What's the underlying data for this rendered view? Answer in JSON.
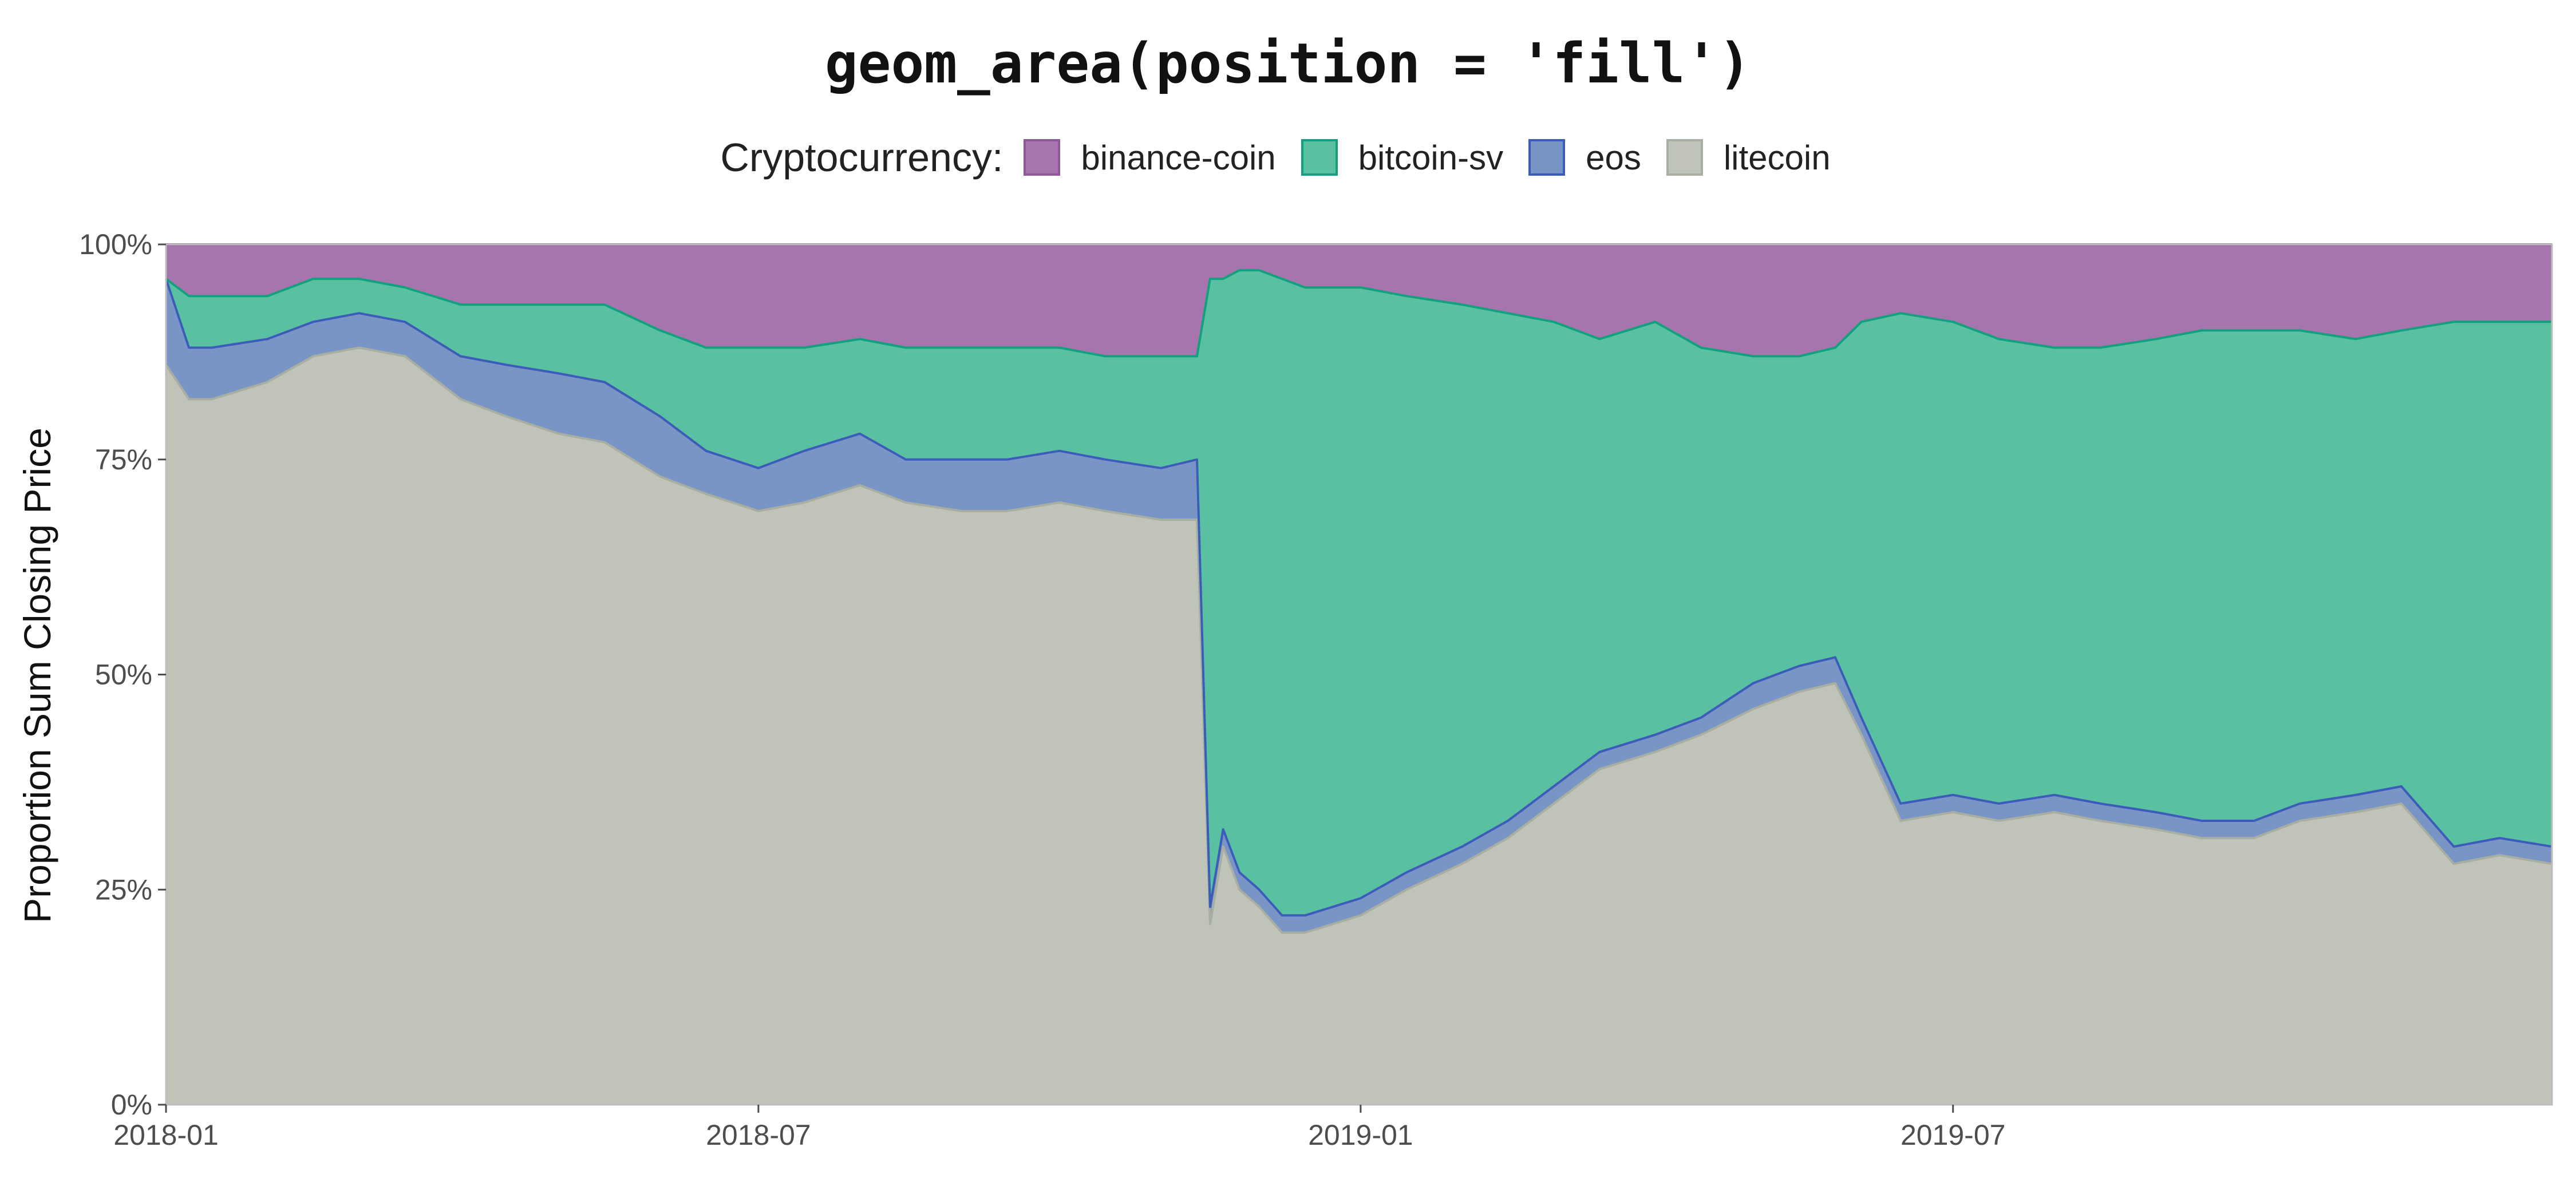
{
  "chart_data": {
    "type": "area",
    "title": "geom_area(position = 'fill')",
    "xlabel": "",
    "ylabel": "Proportion Sum Closing Price",
    "legend_title": "Cryptocurrency:",
    "legend_position": "top",
    "stacking": "fill",
    "x_range": [
      "2018-01-01",
      "2019-12-31"
    ],
    "ylim": [
      0,
      1
    ],
    "x_ticks": [
      {
        "date": "2018-01-01",
        "label": "2018-01"
      },
      {
        "date": "2018-07-01",
        "label": "2018-07"
      },
      {
        "date": "2019-01-01",
        "label": "2019-01"
      },
      {
        "date": "2019-07-01",
        "label": "2019-07"
      }
    ],
    "y_ticks": [
      {
        "value": 0,
        "label": "0%"
      },
      {
        "value": 0.25,
        "label": "25%"
      },
      {
        "value": 0.5,
        "label": "50%"
      },
      {
        "value": 0.75,
        "label": "75%"
      },
      {
        "value": 1,
        "label": "100%"
      }
    ],
    "x": [
      "2018-01-01",
      "2018-01-08",
      "2018-01-15",
      "2018-02-01",
      "2018-02-15",
      "2018-03-01",
      "2018-03-15",
      "2018-04-01",
      "2018-04-15",
      "2018-05-01",
      "2018-05-15",
      "2018-06-01",
      "2018-06-15",
      "2018-07-01",
      "2018-07-15",
      "2018-08-01",
      "2018-08-15",
      "2018-09-01",
      "2018-09-15",
      "2018-10-01",
      "2018-10-15",
      "2018-11-01",
      "2018-11-12",
      "2018-11-16",
      "2018-11-20",
      "2018-11-25",
      "2018-12-01",
      "2018-12-08",
      "2018-12-15",
      "2019-01-01",
      "2019-01-15",
      "2019-02-01",
      "2019-02-15",
      "2019-03-01",
      "2019-03-15",
      "2019-04-01",
      "2019-04-15",
      "2019-05-01",
      "2019-05-15",
      "2019-05-26",
      "2019-06-03",
      "2019-06-15",
      "2019-07-01",
      "2019-07-15",
      "2019-08-01",
      "2019-08-15",
      "2019-09-01",
      "2019-09-15",
      "2019-10-01",
      "2019-10-15",
      "2019-11-01",
      "2019-11-15",
      "2019-12-01",
      "2019-12-15",
      "2019-12-31"
    ],
    "series": [
      {
        "name": "litecoin",
        "color": "#C0C3B8",
        "line": "#A9AEA3",
        "values": [
          0.86,
          0.82,
          0.82,
          0.84,
          0.87,
          0.88,
          0.87,
          0.82,
          0.8,
          0.78,
          0.77,
          0.73,
          0.71,
          0.69,
          0.7,
          0.72,
          0.7,
          0.69,
          0.69,
          0.7,
          0.69,
          0.68,
          0.68,
          0.21,
          0.3,
          0.25,
          0.23,
          0.2,
          0.2,
          0.22,
          0.25,
          0.28,
          0.31,
          0.35,
          0.39,
          0.41,
          0.43,
          0.46,
          0.48,
          0.49,
          0.43,
          0.33,
          0.34,
          0.33,
          0.34,
          0.33,
          0.32,
          0.31,
          0.31,
          0.33,
          0.34,
          0.35,
          0.28,
          0.29,
          0.28
        ]
      },
      {
        "name": "eos",
        "color": "#7995C6",
        "line": "#3B5CB8",
        "values": [
          0.1,
          0.06,
          0.06,
          0.05,
          0.04,
          0.04,
          0.04,
          0.05,
          0.06,
          0.07,
          0.07,
          0.07,
          0.05,
          0.05,
          0.06,
          0.06,
          0.05,
          0.06,
          0.06,
          0.06,
          0.06,
          0.06,
          0.07,
          0.02,
          0.02,
          0.02,
          0.02,
          0.02,
          0.02,
          0.02,
          0.02,
          0.02,
          0.02,
          0.02,
          0.02,
          0.02,
          0.02,
          0.03,
          0.03,
          0.03,
          0.02,
          0.02,
          0.02,
          0.02,
          0.02,
          0.02,
          0.02,
          0.02,
          0.02,
          0.02,
          0.02,
          0.02,
          0.02,
          0.02,
          0.02
        ]
      },
      {
        "name": "bitcoin-sv",
        "color": "#59C1A1",
        "line": "#13A07E",
        "values": [
          0,
          0.06,
          0.06,
          0.05,
          0.05,
          0.04,
          0.04,
          0.06,
          0.07,
          0.08,
          0.09,
          0.1,
          0.12,
          0.14,
          0.12,
          0.11,
          0.13,
          0.13,
          0.13,
          0.12,
          0.12,
          0.13,
          0.12,
          0.73,
          0.64,
          0.7,
          0.72,
          0.74,
          0.73,
          0.71,
          0.67,
          0.63,
          0.59,
          0.54,
          0.48,
          0.48,
          0.43,
          0.38,
          0.36,
          0.36,
          0.46,
          0.57,
          0.55,
          0.54,
          0.52,
          0.53,
          0.55,
          0.57,
          0.57,
          0.55,
          0.53,
          0.53,
          0.61,
          0.6,
          0.61
        ]
      },
      {
        "name": "binance-coin",
        "color": "#A675AE",
        "line": "#8E5A98",
        "values": [
          0.04,
          0.06,
          0.06,
          0.06,
          0.04,
          0.04,
          0.05,
          0.07,
          0.07,
          0.07,
          0.07,
          0.1,
          0.12,
          0.12,
          0.12,
          0.11,
          0.12,
          0.12,
          0.12,
          0.12,
          0.13,
          0.13,
          0.13,
          0.04,
          0.04,
          0.03,
          0.03,
          0.04,
          0.05,
          0.05,
          0.06,
          0.07,
          0.08,
          0.09,
          0.11,
          0.09,
          0.12,
          0.13,
          0.13,
          0.12,
          0.09,
          0.08,
          0.09,
          0.11,
          0.12,
          0.12,
          0.11,
          0.1,
          0.1,
          0.1,
          0.11,
          0.1,
          0.09,
          0.09,
          0.09
        ]
      }
    ]
  }
}
